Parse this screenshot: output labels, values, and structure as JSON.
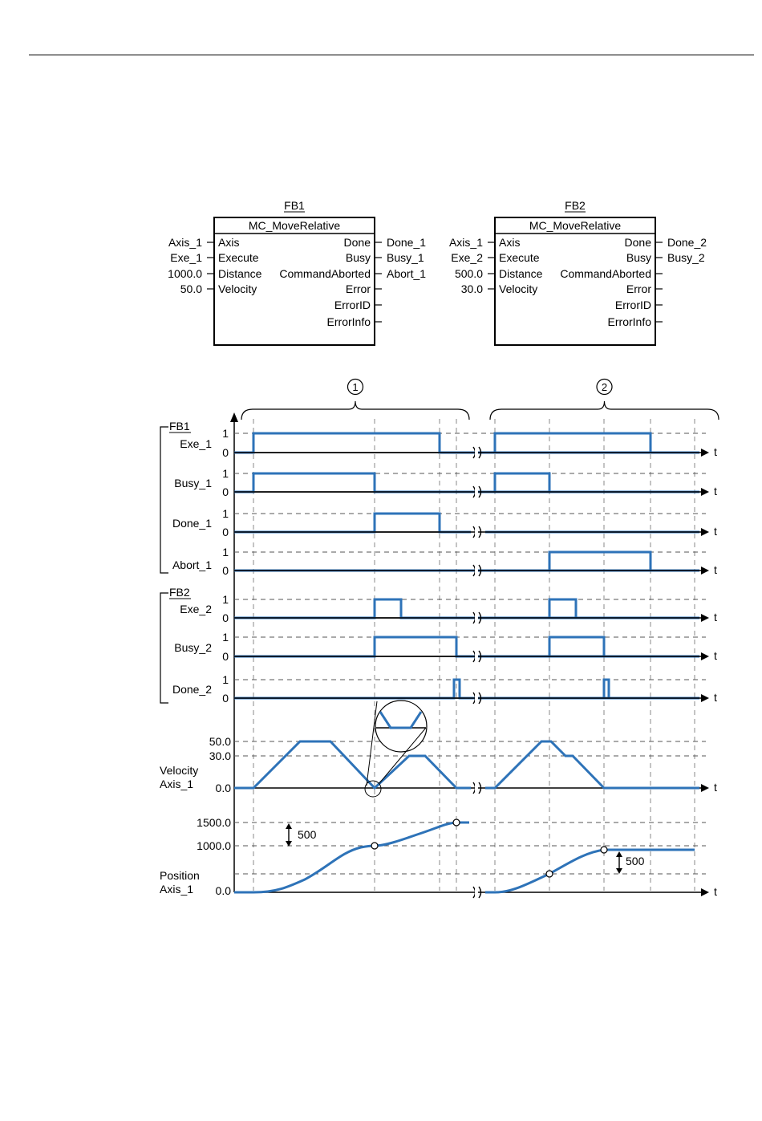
{
  "fb_blocks": [
    {
      "instance": "FB1",
      "type": "MC_MoveRelative",
      "inputs": [
        {
          "pin": "Axis",
          "value": "Axis_1"
        },
        {
          "pin": "Execute",
          "value": "Exe_1"
        },
        {
          "pin": "Distance",
          "value": "1000.0"
        },
        {
          "pin": "Velocity",
          "value": "50.0"
        }
      ],
      "outputs": [
        {
          "pin": "Done",
          "value": "Done_1"
        },
        {
          "pin": "Busy",
          "value": "Busy_1"
        },
        {
          "pin": "CommandAborted",
          "value": "Abort_1"
        },
        {
          "pin": "Error",
          "value": ""
        },
        {
          "pin": "ErrorID",
          "value": ""
        },
        {
          "pin": "ErrorInfo",
          "value": ""
        }
      ]
    },
    {
      "instance": "FB2",
      "type": "MC_MoveRelative",
      "inputs": [
        {
          "pin": "Axis",
          "value": "Axis_1"
        },
        {
          "pin": "Execute",
          "value": "Exe_2"
        },
        {
          "pin": "Distance",
          "value": "500.0"
        },
        {
          "pin": "Velocity",
          "value": "30.0"
        }
      ],
      "outputs": [
        {
          "pin": "Done",
          "value": "Done_2"
        },
        {
          "pin": "Busy",
          "value": "Busy_2"
        },
        {
          "pin": "CommandAborted",
          "value": ""
        },
        {
          "pin": "Error",
          "value": ""
        },
        {
          "pin": "ErrorID",
          "value": ""
        },
        {
          "pin": "ErrorInfo",
          "value": ""
        }
      ]
    }
  ],
  "timing": {
    "callouts": [
      "1",
      "2"
    ],
    "groups": [
      "FB1",
      "FB2"
    ],
    "level_high": "1",
    "level_low": "0",
    "time_label": "t",
    "signals": [
      "Exe_1",
      "Busy_1",
      "Done_1",
      "Abort_1",
      "Exe_2",
      "Busy_2",
      "Done_2"
    ],
    "velocity": {
      "label": [
        "Velocity",
        "Axis_1"
      ],
      "ticks": [
        "50.0",
        "30.0",
        "0.0"
      ]
    },
    "position": {
      "label": [
        "Position",
        "Axis_1"
      ],
      "ticks": [
        "1500.0",
        "1000.0",
        "0.0"
      ],
      "delta": "500"
    }
  }
}
